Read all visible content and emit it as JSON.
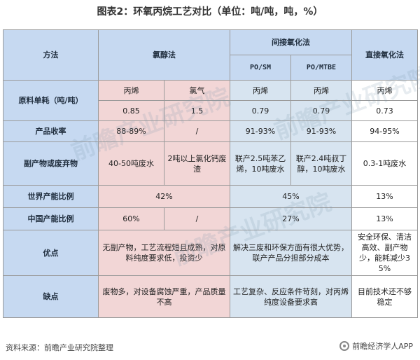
{
  "title": "图表2：环氧丙烷工艺对比（单位：吨/吨，吨，%）",
  "table": {
    "h_method": "方法",
    "h_chlorohydrin": "氯醇法",
    "h_indirect": "间接氧化法",
    "h_posm": "PO/SM",
    "h_pomtbe": "PO/MTBE",
    "h_direct": "直接氧化法",
    "r_raw": "原料单耗（吨/吨）",
    "raw1": [
      "丙烯",
      "氯气",
      "丙烯",
      "丙烯",
      "丙烯"
    ],
    "raw2": [
      "0.85",
      "1.5",
      "0.79",
      "0.79",
      "0.73"
    ],
    "r_yield": "产品收率",
    "yield": [
      "88-89%",
      "/",
      "91-93%",
      "91-93%",
      "94-95%"
    ],
    "r_by": "副产物或废弃物",
    "by": [
      "40-50吨废水",
      "2吨以上氯化钙废渣",
      "联产2.5吨苯乙烯，10吨废水",
      "联产2.4吨叔丁醇，10吨废水",
      "0.3-1吨废水"
    ],
    "r_world": "世界产能比例",
    "world": [
      "42%",
      "45%",
      "13%"
    ],
    "r_china": "中国产能比例",
    "china": [
      "60%",
      "/",
      "27%",
      "13%"
    ],
    "r_pros": "优点",
    "pros": [
      "无副产物，工艺流程短且成熟，对原料纯度要求低，投资少",
      "解决三废和环保方面有很大优势，联产产品分担部分成本",
      "安全环保、清洁高效、副产物少，能耗减少35%"
    ],
    "r_cons": "缺点",
    "cons": [
      "废物多，对设备腐蚀严重，产品质量不高",
      "工艺复杂、反应条件苛刻，对丙烯纯度设备要求高",
      "目前技术还不够稳定"
    ]
  },
  "footer": "资料来源：前瞻产业研究院整理",
  "brand": "前瞻经济学人APP",
  "watermark": "前瞻产业研究院"
}
